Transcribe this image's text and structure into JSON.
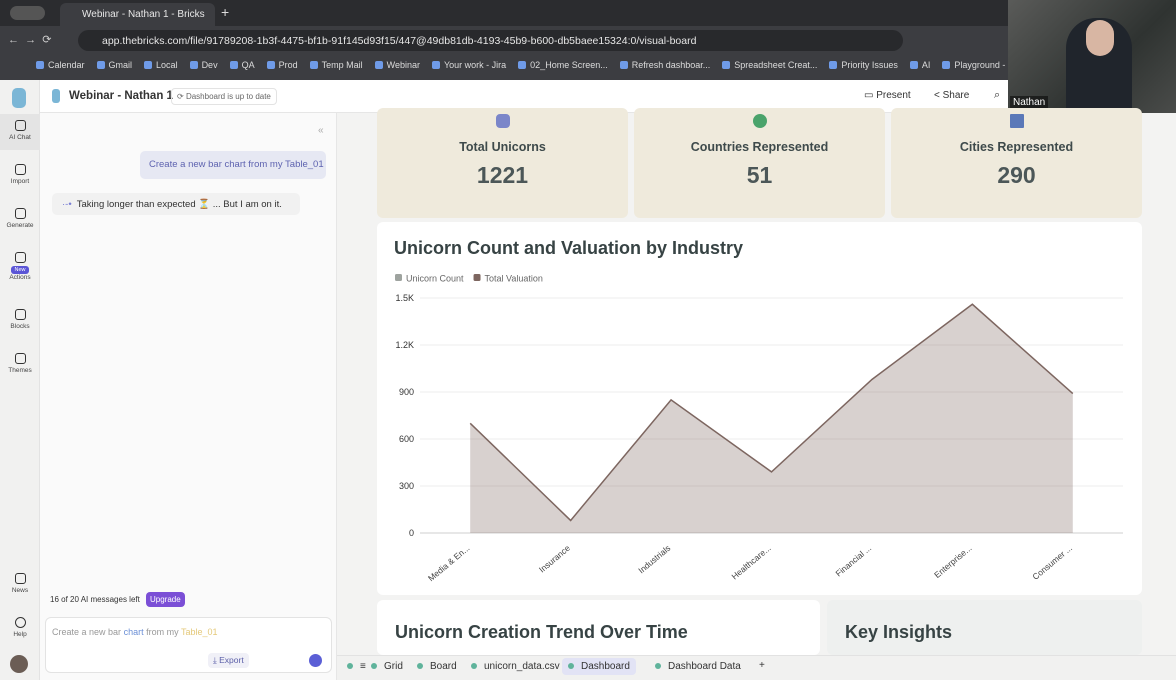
{
  "browser": {
    "tab_title": "Webinar - Nathan 1 - Bricks",
    "url": "app.thebricks.com/file/91789208-1b3f-4475-bf1b-91f145d93f15/447@49db81db-4193-45b9-b600-db5baee15324:0/visual-board",
    "bookmarks": [
      "Calendar",
      "Gmail",
      "Local",
      "Dev",
      "QA",
      "Prod",
      "Temp Mail",
      "Webinar",
      "Your work - Jira",
      "02_Home Screen...",
      "Refresh dashboar...",
      "Spreadsheet Creat...",
      "Priority Issues",
      "AI",
      "Playground - Ope"
    ]
  },
  "video": {
    "name": "Nathan"
  },
  "header": {
    "title": "Webinar - Nathan 1",
    "status": "Dashboard is up to date",
    "present": "Present",
    "share": "Share"
  },
  "sidebar": {
    "items": [
      "AI Chat",
      "Import",
      "Generate",
      "Actions",
      "Blocks",
      "Themes",
      "News",
      "Help"
    ],
    "badge": "New"
  },
  "chat": {
    "user_message": "Create a new bar chart from my Table_01",
    "bot_message": "Taking longer than expected ⏳ ... But I am on it.",
    "quota": "16 of 20 AI messages left",
    "upgrade": "Upgrade",
    "input_parts": [
      "Create a new bar",
      "chart",
      "from my",
      "Table_01"
    ],
    "export": "Export"
  },
  "kpis": [
    {
      "label": "Total Unicorns",
      "value": "1221"
    },
    {
      "label": "Countries Represented",
      "value": "51"
    },
    {
      "label": "Cities Represented",
      "value": "290"
    }
  ],
  "chart_data": {
    "type": "area",
    "title": "Unicorn Count and Valuation by Industry",
    "categories": [
      "Media & En...",
      "Insurance",
      "Industrials",
      "Healthcare...",
      "Financial ...",
      "Enterprise...",
      "Consumer ..."
    ],
    "series": [
      {
        "name": "Unicorn Count",
        "color": "#9ea39f",
        "values": [
          null,
          null,
          null,
          null,
          null,
          null,
          null
        ]
      },
      {
        "name": "Total Valuation",
        "color": "#7d6660",
        "values": [
          700,
          80,
          850,
          390,
          980,
          1460,
          890
        ]
      }
    ],
    "ylim": [
      0,
      1500
    ],
    "yticks": [
      0,
      300,
      600,
      900,
      {
        "value": 1200,
        "label": "1.2K"
      },
      {
        "value": 1500,
        "label": "1.5K"
      }
    ],
    "grid": true
  },
  "sections": [
    "Unicorn Creation Trend Over Time",
    "Key Insights"
  ],
  "tabs": [
    "Grid",
    "Board",
    "unicorn_data.csv",
    "Dashboard",
    "Dashboard Data"
  ]
}
